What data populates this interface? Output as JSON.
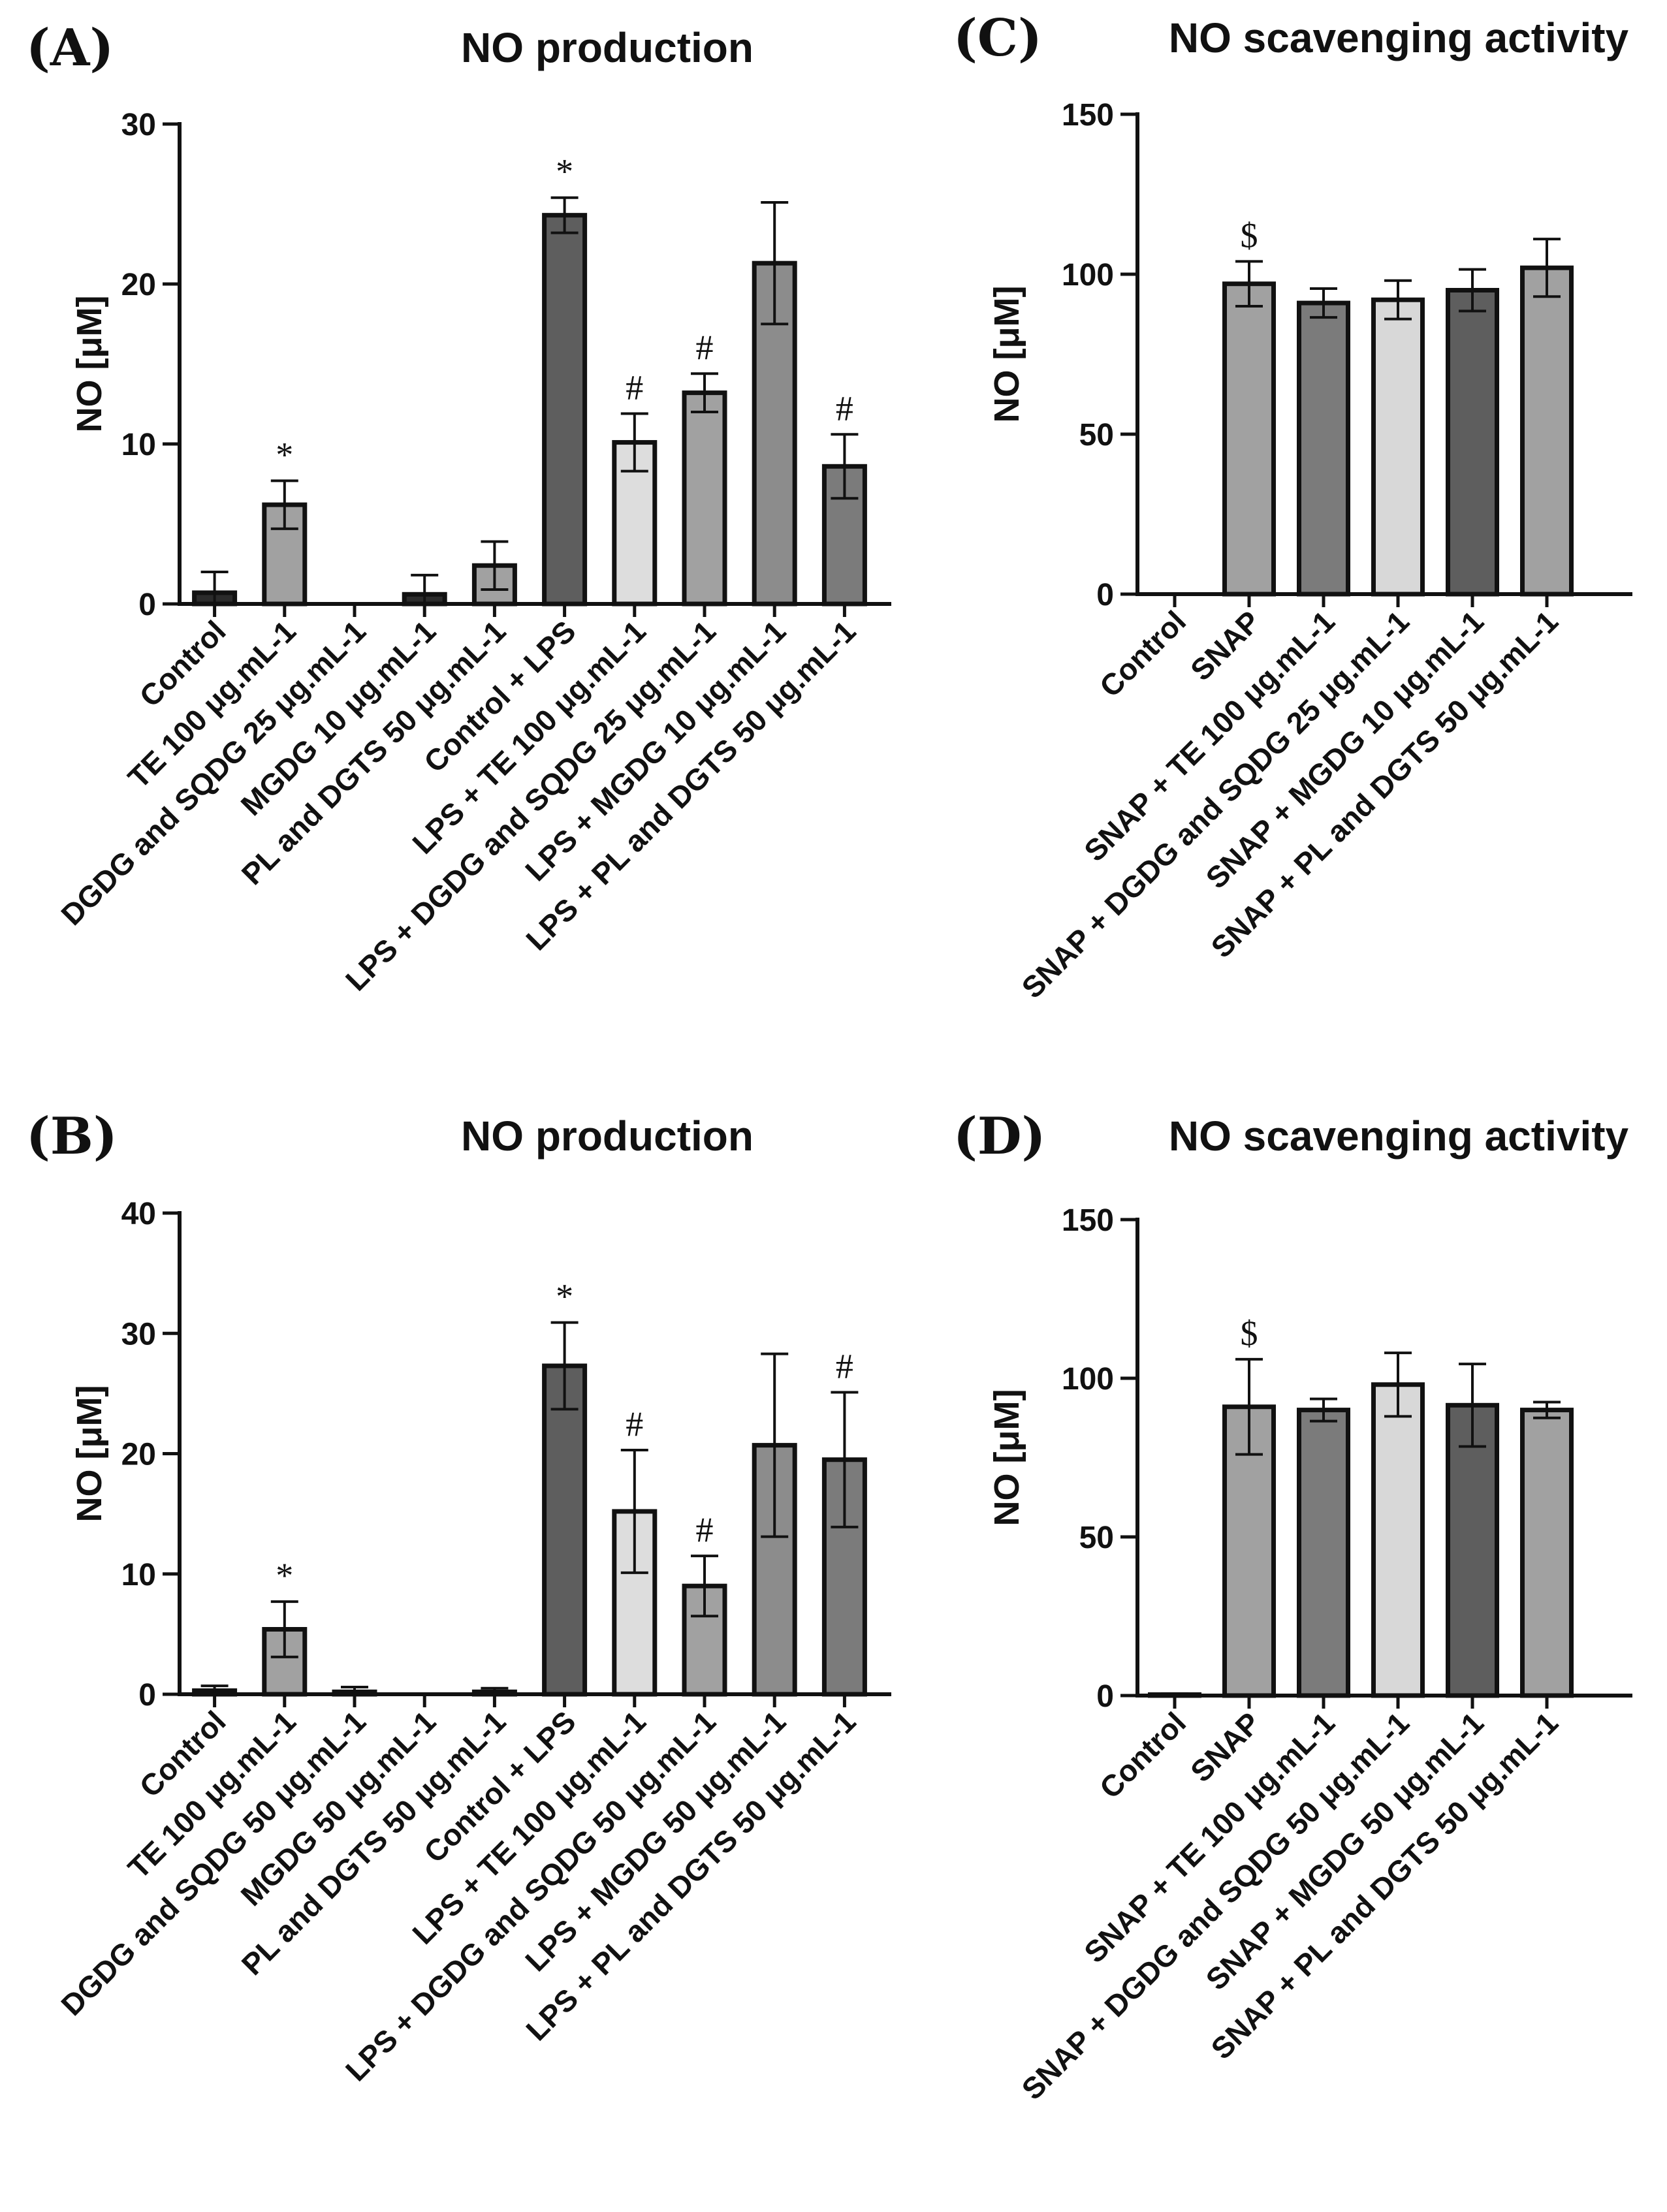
{
  "colors": {
    "c1": "#2b2b2b",
    "c2": "#a1a1a1",
    "c3": "#5e5e5e",
    "c4": "#dddddd",
    "c5": "#7b7b7b",
    "c6": "#8c8c8c",
    "c7": "#d8d8d8"
  },
  "chart_data": [
    {
      "type": "bar",
      "panel_label": "(A)",
      "title": "NO production",
      "ylabel": "NO [μM]",
      "ylim": [
        0,
        30
      ],
      "yticks": [
        "0",
        "10",
        "20",
        "30"
      ],
      "ytick_values": [
        0,
        10,
        20,
        30
      ],
      "categories": [
        "Control",
        "TE 100 μg.mL-1",
        "DGDG and SQDG 25 μg.mL-1",
        "MGDG 10 μg.mL-1",
        "PL and DGTS 50 μg.mL-1",
        "Control + LPS",
        "LPS + TE 100 μg.mL-1",
        "LPS + DGDG and SQDG 25 μg.mL-1",
        "LPS + MGDG 10 μg.mL-1",
        "LPS + PL and DGTS 50 μg.mL-1"
      ],
      "values": [
        0.7,
        6.2,
        0.0,
        0.6,
        2.4,
        24.3,
        10.1,
        13.2,
        21.3,
        8.6
      ],
      "errors": [
        1.3,
        1.5,
        0.0,
        1.2,
        1.5,
        1.1,
        1.8,
        1.2,
        3.8,
        2.0
      ],
      "fills": [
        "c1",
        "c2",
        "c3",
        "c1",
        "c2",
        "c3",
        "c4",
        "c2",
        "c6",
        "c5"
      ],
      "annotations": [
        "",
        "*",
        "",
        "",
        "",
        "*",
        "#",
        "#",
        "",
        "#"
      ]
    },
    {
      "type": "bar",
      "panel_label": "(B)",
      "title": "NO production",
      "ylabel": "NO [μM]",
      "ylim": [
        0,
        40
      ],
      "yticks": [
        "0",
        "10",
        "20",
        "30",
        "40"
      ],
      "ytick_values": [
        0,
        10,
        20,
        30,
        40
      ],
      "categories": [
        "Control",
        "TE 100 μg.mL-1",
        "DGDG and SQDG 50 μg.mL-1",
        "MGDG 50 μg.mL-1",
        "PL and DGTS 50 μg.mL-1",
        "Control + LPS",
        "LPS + TE 100 μg.mL-1",
        "LPS + DGDG and SQDG 50 μg.mL-1",
        "LPS + MGDG 50 μg.mL-1",
        "LPS + PL and DGTS 50 μg.mL-1"
      ],
      "values": [
        0.3,
        5.4,
        0.2,
        0.0,
        0.2,
        27.3,
        15.2,
        9.0,
        20.7,
        19.5
      ],
      "errors": [
        0.4,
        2.3,
        0.4,
        0.0,
        0.3,
        3.6,
        5.1,
        2.5,
        7.6,
        5.6
      ],
      "fills": [
        "c1",
        "c2",
        "c3",
        "c1",
        "c2",
        "c3",
        "c4",
        "c2",
        "c6",
        "c5"
      ],
      "annotations": [
        "",
        "*",
        "",
        "",
        "",
        "*",
        "#",
        "#",
        "",
        "#"
      ]
    },
    {
      "type": "bar",
      "panel_label": "(C)",
      "title": "NO scavenging activity",
      "ylabel": "NO [μM]",
      "ylim": [
        0,
        150
      ],
      "yticks": [
        "0",
        "50",
        "100",
        "150"
      ],
      "ytick_values": [
        0,
        50,
        100,
        150
      ],
      "categories": [
        "Control",
        "SNAP",
        "SNAP + TE 100 μg.mL-1",
        "SNAP + DGDG and SQDG 25 μg.mL-1",
        "SNAP + MGDG 10 μg.mL-1",
        "SNAP + PL and DGTS 50 μg.mL-1"
      ],
      "values": [
        0,
        97,
        91,
        92,
        95,
        102
      ],
      "errors": [
        0,
        7,
        4.5,
        6,
        6.5,
        9
      ],
      "fills": [
        "c1",
        "c2",
        "c5",
        "c7",
        "c3",
        "c2"
      ],
      "annotations": [
        "",
        "$",
        "",
        "",
        "",
        ""
      ]
    },
    {
      "type": "bar",
      "panel_label": "(D)",
      "title": "NO scavenging activity",
      "ylabel": "NO [μM]",
      "ylim": [
        0,
        150
      ],
      "yticks": [
        "0",
        "50",
        "100",
        "150"
      ],
      "ytick_values": [
        0,
        50,
        100,
        150
      ],
      "categories": [
        "Control",
        "SNAP",
        "SNAP + TE 100 μg.mL-1",
        "SNAP + DGDG and SQDG 50 μg.mL-1",
        "SNAP + MGDG 50 μg.mL-1",
        "SNAP + PL and DGTS 50 μg.mL-1"
      ],
      "values": [
        0.3,
        91,
        90,
        98,
        91.5,
        90
      ],
      "errors": [
        0.3,
        15,
        3.5,
        10,
        13,
        2.5
      ],
      "fills": [
        "c1",
        "c2",
        "c5",
        "c7",
        "c3",
        "c2"
      ],
      "annotations": [
        "",
        "$",
        "",
        "",
        "",
        ""
      ]
    }
  ]
}
